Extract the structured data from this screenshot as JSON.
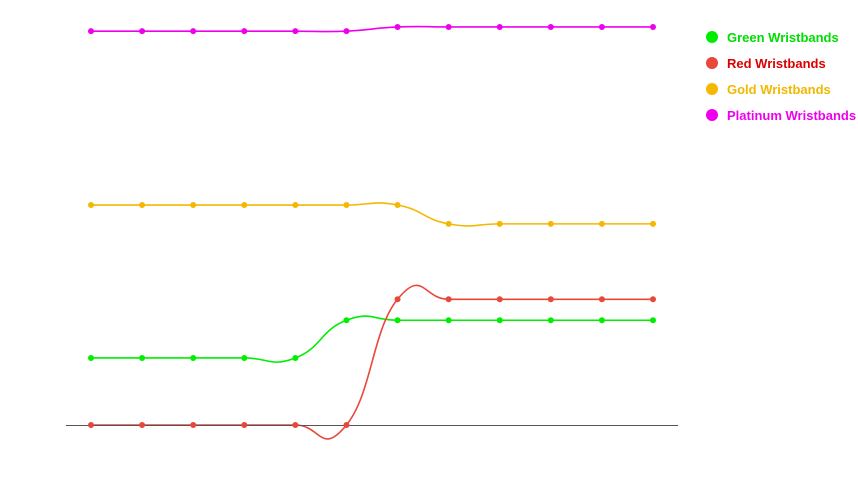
{
  "chart_data": {
    "type": "line",
    "title": "",
    "xlabel": "",
    "ylabel": "",
    "x": [
      1,
      2,
      3,
      4,
      5,
      6,
      7,
      8,
      9,
      10,
      11,
      12
    ],
    "ylim": [
      0,
      100
    ],
    "grid": false,
    "legend_position": "top-right",
    "series": [
      {
        "name": "Green Wristbands",
        "color": "#00ee00",
        "label_color": "#00dd00",
        "values": [
          16,
          16,
          16,
          16,
          16,
          25,
          25,
          25,
          25,
          25,
          25,
          25
        ]
      },
      {
        "name": "Red Wristbands",
        "color": "#e8473a",
        "label_color": "#dd0000",
        "values": [
          0,
          0,
          0,
          0,
          0,
          0,
          30,
          30,
          30,
          30,
          30,
          30
        ]
      },
      {
        "name": "Gold Wristbands",
        "color": "#f4b800",
        "label_color": "#f0b800",
        "values": [
          52.5,
          52.5,
          52.5,
          52.5,
          52.5,
          52.5,
          52.5,
          48,
          48,
          48,
          48,
          48
        ]
      },
      {
        "name": "Platinum Wristbands",
        "color": "#ee00ee",
        "label_color": "#ee00ee",
        "values": [
          94,
          94,
          94,
          94,
          94,
          94,
          95,
          95,
          95,
          95,
          95,
          95
        ]
      }
    ]
  }
}
